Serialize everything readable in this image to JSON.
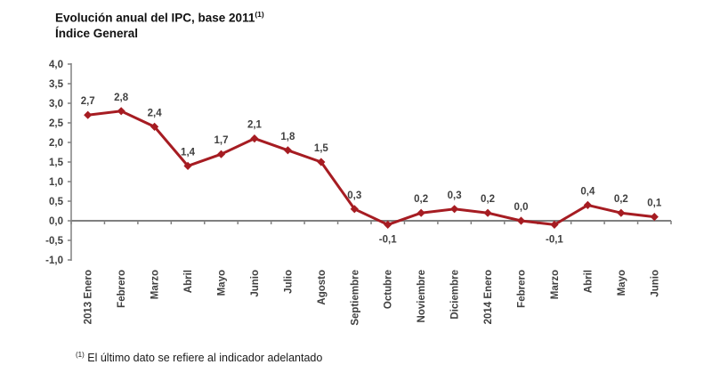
{
  "header": {
    "title": "Evolución anual del IPC, base 2011",
    "title_superscript": "(1)",
    "subtitle": "Índice General"
  },
  "footnote": {
    "marker": "(1)",
    "text": " El último dato se refiere al indicador adelantado"
  },
  "chart_data": {
    "type": "line",
    "title": "Evolución anual del IPC, base 2011 (1)",
    "subtitle": "Índice General",
    "categories": [
      "2013 Enero",
      "Febrero",
      "Marzo",
      "Abril",
      "Mayo",
      "Junio",
      "Julio",
      "Agosto",
      "Septiembre",
      "Octubre",
      "Noviembre",
      "Diciembre",
      "2014 Enero",
      "Febrero",
      "Marzo",
      "Abril",
      "Mayo",
      "Junio"
    ],
    "values": [
      2.7,
      2.8,
      2.4,
      1.4,
      1.7,
      2.1,
      1.8,
      1.5,
      0.3,
      -0.1,
      0.2,
      0.3,
      0.2,
      0.0,
      -0.1,
      0.4,
      0.2,
      0.1
    ],
    "value_labels": [
      "2,7",
      "2,8",
      "2,4",
      "1,4",
      "1,7",
      "2,1",
      "1,8",
      "1,5",
      "0,3",
      "-0,1",
      "0,2",
      "0,3",
      "0,2",
      "0,0",
      "-0,1",
      "0,4",
      "0,2",
      "0,1"
    ],
    "xlabel": "",
    "ylabel": "",
    "ylim": [
      -1.0,
      4.0
    ],
    "ytick_step": 0.5,
    "ytick_labels": [
      "4,0",
      "3,5",
      "3,0",
      "2,5",
      "2,0",
      "1,5",
      "1,0",
      "0,5",
      "0,0",
      "-0,5",
      "-1,0"
    ],
    "grid": false,
    "legend": "none",
    "line_color": "#A61C22",
    "axis_color": "#808080",
    "tick_label_color": "#404040",
    "value_label_color": "#404040"
  }
}
